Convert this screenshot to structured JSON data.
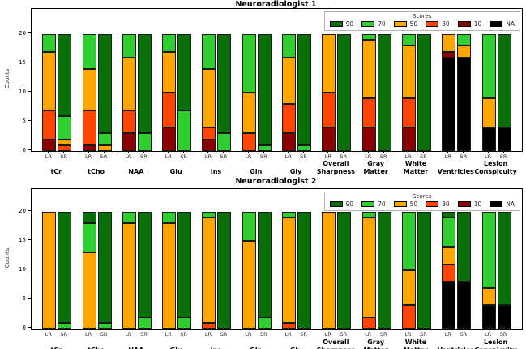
{
  "score_colors": {
    "90": "#0a6e0a",
    "70": "#32cd32",
    "50": "#ffa500",
    "30": "#ff4500",
    "10": "#8b0000",
    "NA": "#000000"
  },
  "chart_data": [
    {
      "type": "bar",
      "subtype": "stacked",
      "title": "Neuroradiologist 1",
      "ylabel": "Counts",
      "yticks": [
        0,
        5,
        10,
        15,
        20
      ],
      "ylim": [
        0,
        24.3
      ],
      "grid": false,
      "legend": {
        "title": "Scores",
        "position": "upper right",
        "entries": [
          "90",
          "70",
          "50",
          "30",
          "10",
          "NA"
        ]
      },
      "bar_labels": [
        "LR",
        "SR"
      ],
      "category_label_lines": [
        [
          "tCr"
        ],
        [
          "tCho"
        ],
        [
          "NAA"
        ],
        [
          "Glu"
        ],
        [
          "Ins"
        ],
        [
          "Gln"
        ],
        [
          "Gly"
        ],
        [
          "Overall",
          "Sharpness"
        ],
        [
          "Gray",
          "Matter"
        ],
        [
          "White",
          "Matter"
        ],
        [
          "Ventricles"
        ],
        [
          "Lesion",
          "Conspicuity"
        ]
      ],
      "series": [
        {
          "category": "tCr",
          "LR": {
            "10": 2,
            "30": 5,
            "50": 10,
            "70": 3
          },
          "SR": {
            "30": 1,
            "50": 1,
            "70": 4,
            "90": 14
          }
        },
        {
          "category": "tCho",
          "LR": {
            "10": 1,
            "30": 6,
            "50": 7,
            "70": 6
          },
          "SR": {
            "50": 1,
            "70": 2,
            "90": 17
          }
        },
        {
          "category": "NAA",
          "LR": {
            "10": 3,
            "30": 4,
            "50": 9,
            "70": 4
          },
          "SR": {
            "70": 3,
            "90": 17
          }
        },
        {
          "category": "Glu",
          "LR": {
            "10": 4,
            "30": 6,
            "50": 7,
            "70": 3
          },
          "SR": {
            "70": 7,
            "90": 13
          }
        },
        {
          "category": "Ins",
          "LR": {
            "10": 2,
            "30": 2,
            "50": 10,
            "70": 6
          },
          "SR": {
            "70": 3,
            "90": 17
          }
        },
        {
          "category": "Gln",
          "LR": {
            "30": 3,
            "50": 7,
            "70": 10
          },
          "SR": {
            "70": 1,
            "90": 19
          }
        },
        {
          "category": "Gly",
          "LR": {
            "10": 3,
            "30": 5,
            "50": 8,
            "70": 4
          },
          "SR": {
            "70": 1,
            "90": 19
          }
        },
        {
          "category": "Overall Sharpness",
          "LR": {
            "10": 4,
            "30": 6,
            "50": 10
          },
          "SR": {
            "90": 20
          }
        },
        {
          "category": "Gray Matter",
          "LR": {
            "10": 4,
            "30": 5,
            "50": 10,
            "70": 1
          },
          "SR": {
            "90": 20
          }
        },
        {
          "category": "White Matter",
          "LR": {
            "10": 4,
            "30": 5,
            "50": 9,
            "70": 2
          },
          "SR": {
            "90": 20
          }
        },
        {
          "category": "Ventricles",
          "LR": {
            "NA": 16,
            "10": 1,
            "50": 3
          },
          "SR": {
            "NA": 16,
            "50": 2,
            "70": 2
          }
        },
        {
          "category": "Lesion Conspicuity",
          "LR": {
            "NA": 4,
            "50": 5,
            "70": 11
          },
          "SR": {
            "NA": 4,
            "90": 16
          }
        }
      ]
    },
    {
      "type": "bar",
      "subtype": "stacked",
      "title": "Neuroradiologist 2",
      "ylabel": "Counts",
      "yticks": [
        0,
        5,
        10,
        15,
        20
      ],
      "ylim": [
        0,
        23.9
      ],
      "grid": false,
      "legend": {
        "title": "Scores",
        "position": "upper right",
        "entries": [
          "90",
          "70",
          "50",
          "30",
          "10",
          "NA"
        ]
      },
      "bar_labels": [
        "LR",
        "SR"
      ],
      "category_label_lines": [
        [
          "tCr"
        ],
        [
          "tCho"
        ],
        [
          "NAA"
        ],
        [
          "Glu"
        ],
        [
          "Ins"
        ],
        [
          "Gln"
        ],
        [
          "Gly"
        ],
        [
          "Overall",
          "Sharpness"
        ],
        [
          "Gray",
          "Matter"
        ],
        [
          "White",
          "Matter"
        ],
        [
          "Ventricles"
        ],
        [
          "Lesion",
          "Conspicuity"
        ]
      ],
      "series": [
        {
          "category": "tCr",
          "LR": {
            "50": 20
          },
          "SR": {
            "70": 1,
            "90": 19
          }
        },
        {
          "category": "tCho",
          "LR": {
            "50": 13,
            "70": 5,
            "90": 2
          },
          "SR": {
            "70": 1,
            "90": 19
          }
        },
        {
          "category": "NAA",
          "LR": {
            "50": 18,
            "70": 2
          },
          "SR": {
            "70": 2,
            "90": 18
          }
        },
        {
          "category": "Glu",
          "LR": {
            "50": 18,
            "70": 2
          },
          "SR": {
            "70": 2,
            "90": 18
          }
        },
        {
          "category": "Ins",
          "LR": {
            "30": 1,
            "50": 18,
            "70": 1
          },
          "SR": {
            "90": 20
          }
        },
        {
          "category": "Gln",
          "LR": {
            "50": 15,
            "70": 5
          },
          "SR": {
            "70": 2,
            "90": 18
          }
        },
        {
          "category": "Gly",
          "LR": {
            "30": 1,
            "50": 18,
            "70": 1
          },
          "SR": {
            "90": 20
          }
        },
        {
          "category": "Overall Sharpness",
          "LR": {
            "50": 20
          },
          "SR": {
            "90": 20
          }
        },
        {
          "category": "Gray Matter",
          "LR": {
            "30": 2,
            "50": 17,
            "70": 1
          },
          "SR": {
            "90": 20
          }
        },
        {
          "category": "White Matter",
          "LR": {
            "30": 4,
            "50": 6,
            "70": 10
          },
          "SR": {
            "90": 20
          }
        },
        {
          "category": "Ventricles",
          "LR": {
            "NA": 8,
            "30": 3,
            "50": 3,
            "70": 5,
            "90": 1
          },
          "SR": {
            "NA": 8,
            "90": 12
          }
        },
        {
          "category": "Lesion Conspicuity",
          "LR": {
            "NA": 4,
            "50": 3,
            "70": 13
          },
          "SR": {
            "NA": 4,
            "90": 16
          }
        }
      ]
    }
  ]
}
